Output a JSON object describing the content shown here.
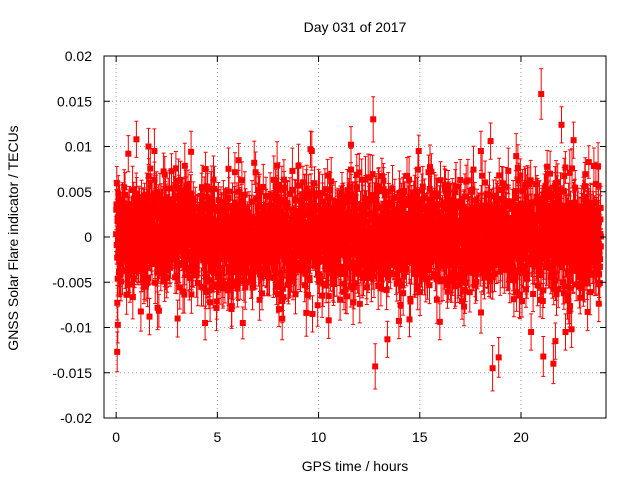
{
  "chart_data": {
    "type": "scatter",
    "title": "Day 031 of 2017",
    "xlabel": "GPS time / hours",
    "ylabel": "GNSS Solar Flare indicator / TECUs",
    "xlim": [
      -0.6,
      24.2
    ],
    "ylim": [
      -0.02,
      0.02
    ],
    "xticks": [
      0,
      5,
      10,
      15,
      20
    ],
    "xtick_labels": [
      "0",
      "5",
      "10",
      "15",
      "20"
    ],
    "yticks": [
      -0.02,
      -0.015,
      -0.01,
      -0.005,
      0,
      0.005,
      0.01,
      0.015,
      0.02
    ],
    "ytick_labels": [
      "-0.02",
      "-0.015",
      "-0.01",
      "-0.005",
      "0",
      "0.005",
      "0.01",
      "0.015",
      "0.02"
    ],
    "grid": true,
    "marker_color": "#ff0000",
    "series": [
      {
        "name": "GNSS Solar Flare indicator",
        "x_start": 0.0,
        "x_end": 23.95,
        "n_points": 2880,
        "typical_abs_value": 0.003,
        "typical_error": 0.0022,
        "outliers": [
          {
            "x": 0.05,
            "y": -0.0127,
            "err": 0.0022
          },
          {
            "x": 0.08,
            "y": -0.0097,
            "err": 0.002
          },
          {
            "x": 0.6,
            "y": 0.0092,
            "err": 0.002
          },
          {
            "x": 1.0,
            "y": 0.0108,
            "err": 0.002
          },
          {
            "x": 1.6,
            "y": 0.01,
            "err": 0.002
          },
          {
            "x": 1.65,
            "y": -0.0088,
            "err": 0.002
          },
          {
            "x": 9.6,
            "y": 0.0097,
            "err": 0.002
          },
          {
            "x": 9.7,
            "y": -0.0085,
            "err": 0.002
          },
          {
            "x": 10.5,
            "y": -0.0092,
            "err": 0.002
          },
          {
            "x": 11.6,
            "y": 0.0102,
            "err": 0.002
          },
          {
            "x": 12.7,
            "y": 0.013,
            "err": 0.0025
          },
          {
            "x": 12.8,
            "y": -0.0143,
            "err": 0.0025
          },
          {
            "x": 13.4,
            "y": -0.0113,
            "err": 0.002
          },
          {
            "x": 18.6,
            "y": -0.0145,
            "err": 0.0025
          },
          {
            "x": 18.9,
            "y": -0.0133,
            "err": 0.0022
          },
          {
            "x": 18.5,
            "y": 0.0106,
            "err": 0.002
          },
          {
            "x": 20.5,
            "y": -0.0105,
            "err": 0.002
          },
          {
            "x": 21.0,
            "y": 0.0158,
            "err": 0.0028
          },
          {
            "x": 21.1,
            "y": -0.0132,
            "err": 0.0022
          },
          {
            "x": 21.6,
            "y": -0.014,
            "err": 0.0022
          },
          {
            "x": 21.7,
            "y": -0.0115,
            "err": 0.002
          },
          {
            "x": 22.0,
            "y": 0.0124,
            "err": 0.002
          },
          {
            "x": 22.2,
            "y": -0.0105,
            "err": 0.002
          },
          {
            "x": 22.5,
            "y": -0.0102,
            "err": 0.002
          },
          {
            "x": 22.6,
            "y": 0.0107,
            "err": 0.002
          }
        ]
      }
    ]
  }
}
